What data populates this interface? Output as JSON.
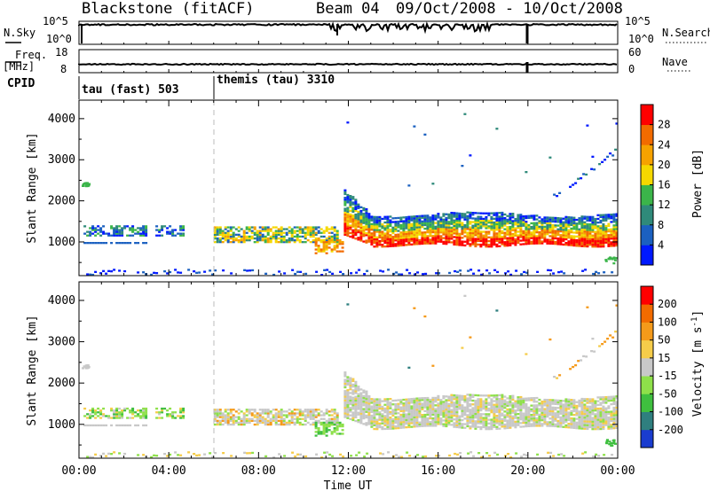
{
  "header": {
    "station": "Blackstone (fitACF)",
    "beam": "Beam 04",
    "date_range": "09/Oct/2008 - 10/Oct/2008"
  },
  "status_panels": {
    "nsky_label": "N.Sky",
    "nsearch_label": "N.Search",
    "nsky_ticks": [
      "10^5",
      "10^0"
    ],
    "nsearch_ticks": [
      "10^5",
      "10^0"
    ],
    "freq_label": "Freq.",
    "freq_unit": "[MHz]",
    "freq_ticks": [
      "18",
      "8"
    ],
    "nave_label": "Nave",
    "nave_ticks": [
      "60",
      "0"
    ],
    "cpid_label": "CPID",
    "modes": [
      {
        "name": "tau (fast) 503",
        "start_hour": 0
      },
      {
        "name": "themis (tau) 3310",
        "start_hour": 6
      }
    ]
  },
  "chart_data": [
    {
      "type": "heatmap",
      "ylabel": "Slant Range [km]",
      "xlabel": "Time UT",
      "x_ticks": [
        "00:00",
        "04:00",
        "08:00",
        "12:00",
        "16:00",
        "20:00",
        "00:00"
      ],
      "xlim_hours": [
        0,
        24
      ],
      "y_ticks": [
        1000,
        2000,
        3000,
        4000
      ],
      "ylim": [
        180,
        4450
      ],
      "colorbar": {
        "label": "Power [dB]",
        "ticks": [
          "4",
          "8",
          "12",
          "16",
          "20",
          "24",
          "28"
        ],
        "colors": [
          "#0019ff",
          "#1b60c0",
          "#2f8a7a",
          "#3bb54a",
          "#f5d800",
          "#f6a200",
          "#f26b00",
          "#ff0000"
        ]
      },
      "scatter_regions": [
        {
          "t_start": 0.0,
          "t_end": 4.6,
          "r_min": 1150,
          "r_max": 1450,
          "dominant": "blue"
        },
        {
          "t_start": 6.0,
          "t_end": 11.5,
          "r_min": 1000,
          "r_max": 1400,
          "dominant": "green-yellow"
        },
        {
          "t_start": 11.8,
          "t_end": 24.0,
          "r_min": 900,
          "r_max": 1700,
          "dominant": "red-orange"
        },
        {
          "t_start": 0.0,
          "t_end": 24.0,
          "r_min": 180,
          "r_max": 350,
          "dominant": "blue"
        }
      ]
    },
    {
      "type": "heatmap",
      "ylabel": "Slant Range [km]",
      "xlabel": "Time UT",
      "x_ticks": [
        "00:00",
        "04:00",
        "08:00",
        "12:00",
        "16:00",
        "20:00",
        "00:00"
      ],
      "xlim_hours": [
        0,
        24
      ],
      "y_ticks": [
        1000,
        2000,
        3000,
        4000
      ],
      "ylim": [
        180,
        4450
      ],
      "colorbar": {
        "label": "Velocity [m s^-1]",
        "ticks": [
          "200",
          "100",
          "50",
          "15",
          "-15",
          "-50",
          "-100",
          "-200"
        ],
        "colors": [
          "#1a3ccf",
          "#2f7f7f",
          "#3fbf3f",
          "#8ee04a",
          "#c8c8c8",
          "#f5cc4a",
          "#f59a1a",
          "#f26b00",
          "#ff0000"
        ]
      },
      "scatter_regions": [
        {
          "t_start": 0.0,
          "t_end": 4.6,
          "r_min": 1150,
          "r_max": 1450,
          "dominant": "green"
        },
        {
          "t_start": 6.0,
          "t_end": 11.5,
          "r_min": 1000,
          "r_max": 1400,
          "dominant": "grey"
        },
        {
          "t_start": 11.8,
          "t_end": 24.0,
          "r_min": 1100,
          "r_max": 1700,
          "dominant": "grey"
        }
      ]
    }
  ]
}
